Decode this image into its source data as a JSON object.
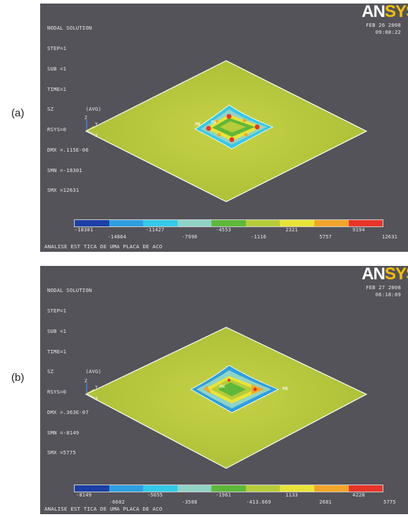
{
  "panels": [
    {
      "label": "(a)",
      "title": "NODAL SOLUTION",
      "info": [
        "STEP=1",
        "SUB =1",
        "TIME=1",
        "SZ          (AVG)",
        "RSYS=0",
        "DMX =.115E-06",
        "SMN =-18301",
        "SMX =12631"
      ],
      "date": "FEB 26 2008",
      "time": "09:08:22",
      "logo_main": "AN",
      "logo_tail": "SYS",
      "min_marker": "MN",
      "max_marker": "MX",
      "legend_top": [
        "-18301",
        "-11427",
        "-4553",
        "2321",
        "9194"
      ],
      "legend_bottom": [
        "-14864",
        "-7990",
        "-1116",
        "5757",
        "12631"
      ],
      "caption": "ANALISE EST TICA DE UMA PLACA DE ACO"
    },
    {
      "label": "(b)",
      "title": "NODAL SOLUTION",
      "info": [
        "STEP=1",
        "SUB =1",
        "TIME=1",
        "SZ          (AVG)",
        "RSYS=0",
        "DMX =.363E-07",
        "SMN =-8149",
        "SMX =5775"
      ],
      "date": "FEB 27 2008",
      "time": "06:18:09",
      "logo_main": "AN",
      "logo_tail": "SYS",
      "min_marker": "MN",
      "max_marker": "MX",
      "legend_top": [
        "-8149",
        "-5055",
        "-1961",
        "1133",
        "4228"
      ],
      "legend_bottom": [
        "-6602",
        "-3508",
        "-413.669",
        "2681",
        "5775"
      ],
      "caption": "ANALISE EST TICA DE UMA PLACA DE ACO"
    }
  ],
  "triad_labels": {
    "x": "X",
    "y": "Y",
    "z": "Z"
  },
  "colors": {
    "background": "#55535a",
    "plate": "#b4c53a",
    "legend": [
      "#1b3fa6",
      "#2e9fe0",
      "#34c9e8",
      "#8fd4c5",
      "#5fb83a",
      "#b6cc3a",
      "#e9e437",
      "#f3a52a",
      "#e8352a"
    ]
  }
}
